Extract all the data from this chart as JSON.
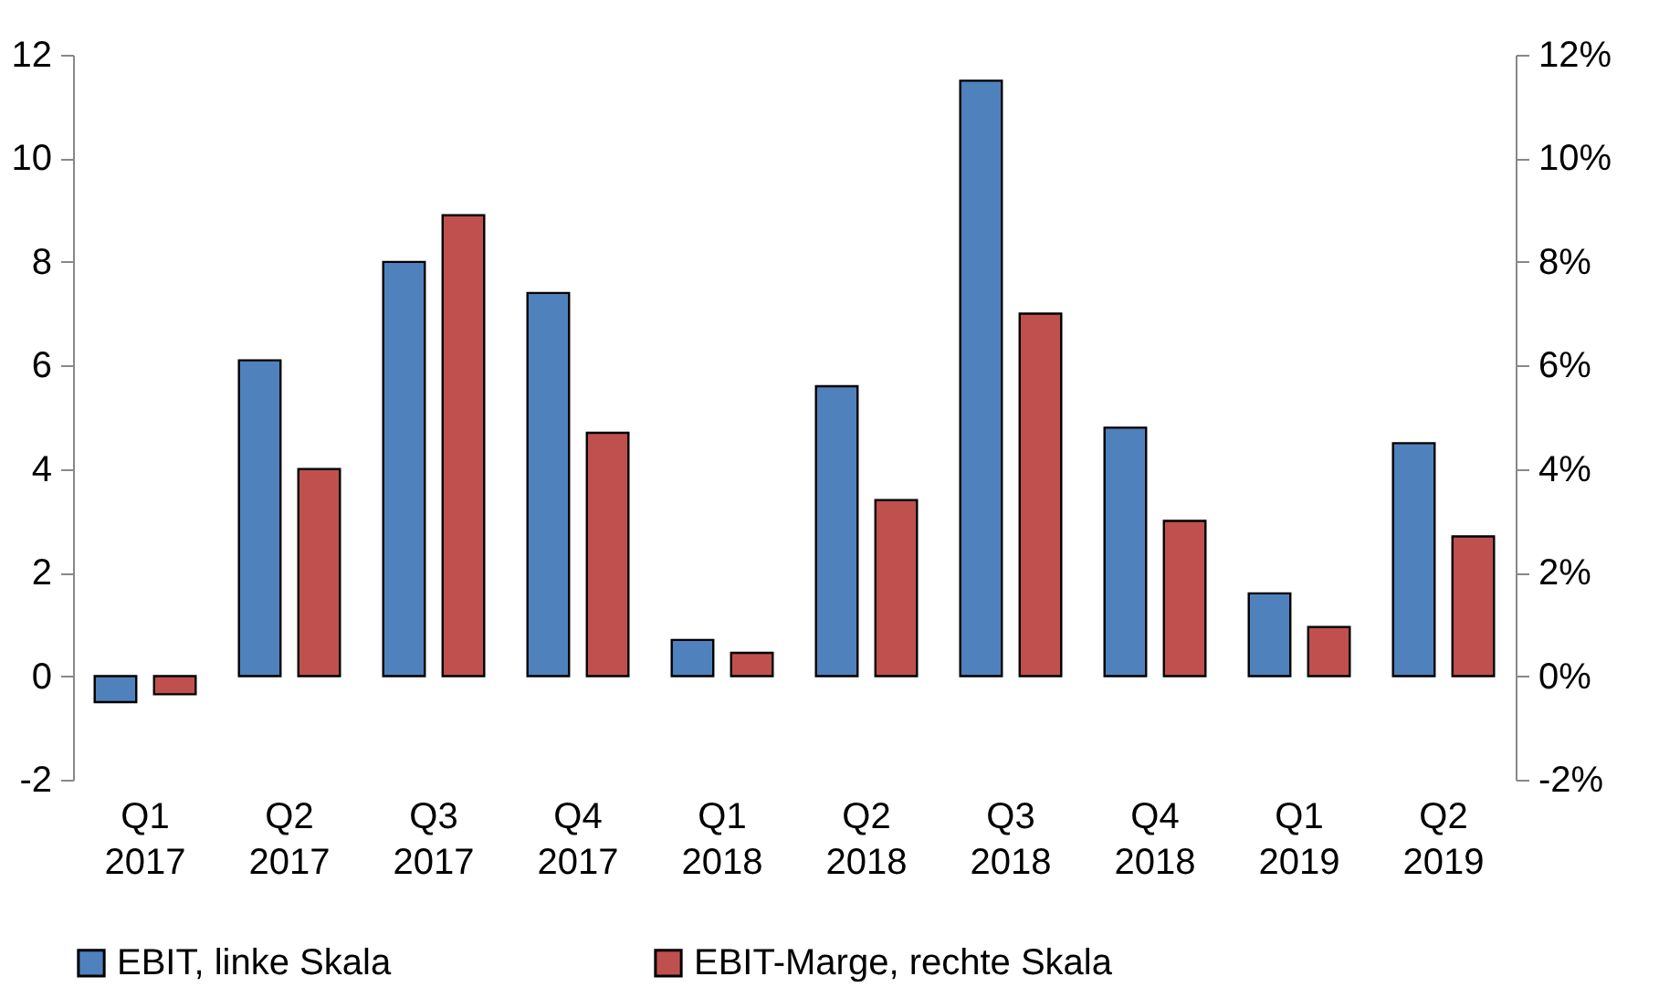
{
  "chart_data": {
    "type": "bar",
    "categories": [
      "Q1 2017",
      "Q2 2017",
      "Q3 2017",
      "Q4 2017",
      "Q1 2018",
      "Q2 2018",
      "Q3 2018",
      "Q4 2018",
      "Q1 2019",
      "Q2 2019"
    ],
    "series": [
      {
        "name": "EBIT, linke Skala",
        "color": "#4f81bd",
        "values": [
          -0.5,
          6.1,
          8.0,
          7.4,
          0.7,
          5.6,
          11.5,
          4.8,
          1.6,
          4.5
        ]
      },
      {
        "name": "EBIT-Marge, rechte Skala",
        "color": "#c0504d",
        "axis": "y2",
        "values": [
          -0.35,
          4.0,
          8.9,
          4.7,
          0.45,
          3.4,
          7.0,
          3.0,
          0.95,
          2.7
        ]
      }
    ],
    "ylim": [
      -2,
      12
    ],
    "yticks": [
      -2,
      0,
      2,
      4,
      6,
      8,
      10,
      12
    ],
    "y2lim": [
      -2,
      12
    ],
    "y2ticks": [
      {
        "value": -2,
        "label": "-2%"
      },
      {
        "value": 0,
        "label": "0%"
      },
      {
        "value": 2,
        "label": "2%"
      },
      {
        "value": 4,
        "label": "4%"
      },
      {
        "value": 6,
        "label": "6%"
      },
      {
        "value": 8,
        "label": "8%"
      },
      {
        "value": 10,
        "label": "10%"
      },
      {
        "value": 12,
        "label": "12%"
      }
    ],
    "grid": false,
    "legend": "bottom"
  }
}
